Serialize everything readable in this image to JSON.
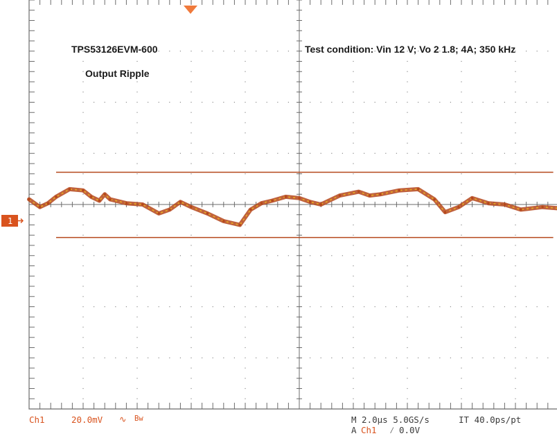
{
  "chart_data": {
    "type": "line",
    "annotations": {
      "board": "TPS53126EVM-600",
      "plot": "Output Ripple",
      "condition": "Test condition: Vin 12 V; Vo 2 1.8; 4A; 350 kHz"
    },
    "grid": true,
    "divisions": {
      "x": 10,
      "y": 8
    },
    "x_units": "µs",
    "y_units": "mV",
    "x_per_div": 2.0,
    "y_per_div": 20.0,
    "xlim": [
      0,
      20
    ],
    "ylim": [
      -80,
      80
    ],
    "cursor_levels_mV": [
      12.6,
      -12.9
    ],
    "series": [
      {
        "color": "#b5471b",
        "x": [
          0,
          0.4,
          0.7,
          1.0,
          1.5,
          2.0,
          2.3,
          2.6,
          2.8,
          3.0,
          3.6,
          4.2,
          4.8,
          5.2,
          5.6,
          6.0,
          6.6,
          7.2,
          7.8,
          8.2,
          8.6,
          9.0,
          9.5,
          10.0,
          10.4,
          10.8,
          11.5,
          12.2,
          12.6,
          13.0,
          13.7,
          14.4,
          15.0,
          15.4,
          15.9,
          16.4,
          17.0,
          17.6,
          18.2,
          19.0,
          19.6,
          20.0
        ],
        "y": [
          2.0,
          -1.0,
          0.5,
          3.0,
          6.0,
          5.5,
          3.0,
          1.5,
          4.0,
          2.0,
          0.5,
          0.0,
          -3.5,
          -2.0,
          1.0,
          -1.0,
          -3.5,
          -6.5,
          -8.0,
          -2.0,
          0.5,
          1.5,
          3.0,
          2.5,
          1.0,
          0.0,
          3.5,
          5.0,
          3.5,
          4.0,
          5.5,
          6.0,
          2.0,
          -3.0,
          -1.0,
          2.5,
          0.5,
          0.0,
          -2.0,
          -1.0,
          -1.5,
          -3.0
        ]
      }
    ]
  },
  "status": {
    "channel": "Ch1",
    "volts_div": "20.0mV",
    "coupling_glyph": "∿",
    "bw_limit": "Bw",
    "timebase": "M 2.0µs 5.0GS/s",
    "interp": "IT 40.0ps/pt",
    "trigger": "A",
    "trigger_source": "Ch1",
    "trigger_slope": "⁄",
    "trigger_level": "0.0V"
  },
  "marker": {
    "label": "1"
  },
  "colors": {
    "trace": "#b5471b",
    "trace_highlight": "#f0b51e",
    "cursor": "#b5471b",
    "frame": "#6b6b6b",
    "marker": "#d9531e"
  }
}
